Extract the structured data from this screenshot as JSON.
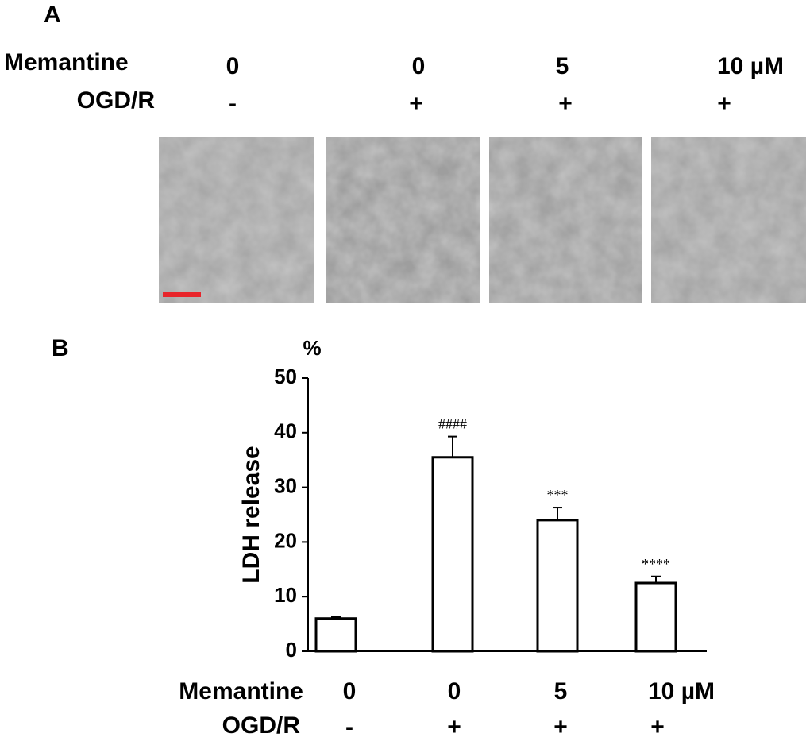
{
  "panel_a": {
    "label": "A",
    "row_names": [
      "Memantine",
      "OGD/R"
    ],
    "memantine": [
      "0",
      "0",
      "5",
      "10 µM"
    ],
    "ogdr": [
      "-",
      "+",
      "+",
      "+"
    ]
  },
  "chart_data": {
    "type": "bar",
    "label": "B",
    "y_label": "LDH release",
    "y_unit": "%",
    "category_rows": [
      "Memantine",
      "OGD/R"
    ],
    "categories": [
      "0",
      "0",
      "5",
      "10 µM"
    ],
    "categories_ogdr": [
      "-",
      "+",
      "+",
      "+"
    ],
    "values": [
      6,
      35.5,
      24,
      12.5
    ],
    "errors": [
      0.3,
      3.8,
      2.3,
      1.2
    ],
    "significance": [
      null,
      "####",
      "***",
      "****"
    ],
    "color": "#ffffff",
    "ylim": [
      0,
      50
    ],
    "yticks": [
      0,
      10,
      20,
      30,
      40,
      50
    ]
  }
}
